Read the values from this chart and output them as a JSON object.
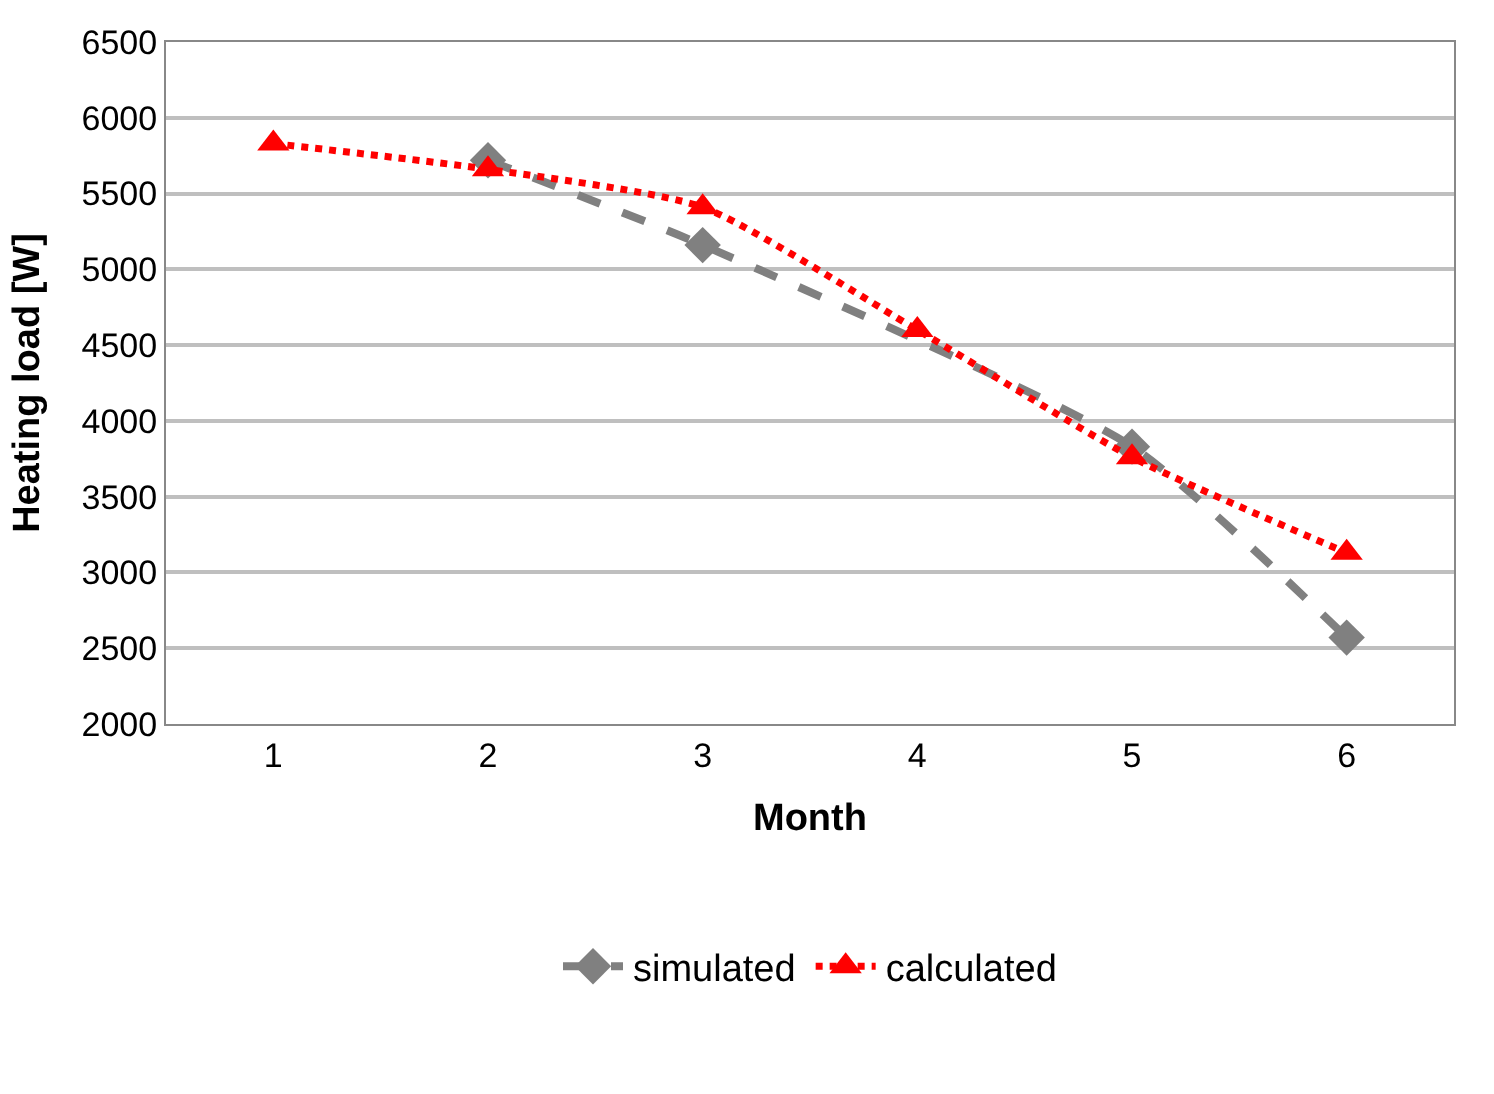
{
  "chart_data": {
    "type": "line",
    "xlabel": "Month",
    "ylabel": "Heating load [W]",
    "categories": [
      "1",
      "2",
      "3",
      "4",
      "5",
      "6"
    ],
    "series": [
      {
        "name": "simulated",
        "color": "#808080",
        "values": [
          null,
          5720,
          5160,
          null,
          3830,
          2570
        ],
        "marker": "diamond",
        "line_style": "dashed"
      },
      {
        "name": "calculated",
        "color": "#ff0000",
        "values": [
          5830,
          5660,
          5410,
          4600,
          3760,
          3130
        ],
        "marker": "triangle",
        "line_style": "dotted"
      }
    ],
    "ylim": [
      2000,
      6500
    ],
    "yticks": [
      2000,
      2500,
      3000,
      3500,
      4000,
      4500,
      5000,
      5500,
      6000,
      6500
    ],
    "grid": "y",
    "legend": "bottom"
  }
}
